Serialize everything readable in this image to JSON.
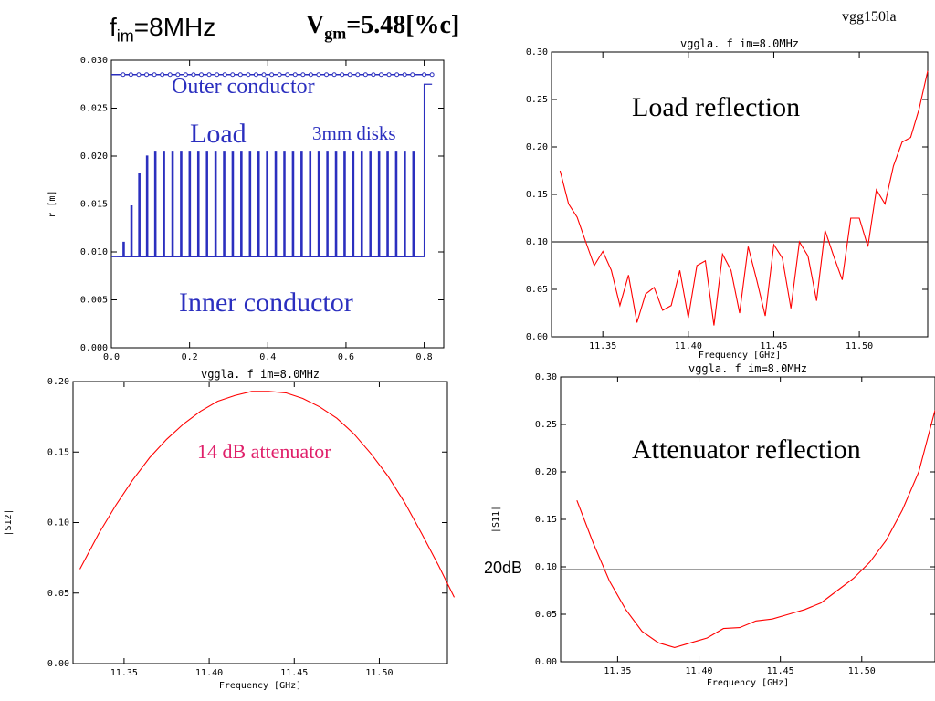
{
  "header": {
    "fim_f": "f",
    "fim_sub": "im",
    "fim_rest": "=8MHz",
    "vgm_v": "V",
    "vgm_sub": "gm",
    "vgm_rest": "=5.48[%c]",
    "corner_label": "vgg150la",
    "db_label": "20dB"
  },
  "chart_data": [
    {
      "id": "geometry",
      "type": "line",
      "title": "",
      "xlabel": "",
      "ylabel": "r [m]",
      "xlim": [
        0.0,
        0.85
      ],
      "ylim": [
        0.0,
        0.03
      ],
      "xticks": [
        0.0,
        0.2,
        0.4,
        0.6,
        0.8
      ],
      "xtick_labels": [
        "0.0",
        "0.2",
        "0.4",
        "0.6",
        "0.8"
      ],
      "yticks": [
        0.0,
        0.005,
        0.01,
        0.015,
        0.02,
        0.025,
        0.03
      ],
      "ytick_labels": [
        "0.000",
        "0.005",
        "0.010",
        "0.015",
        "0.020",
        "0.025",
        "0.030"
      ],
      "grid": false,
      "annotations": [
        "Outer conductor",
        "Load",
        "3mm disks",
        "Inner conductor"
      ],
      "outer_conductor": {
        "x": [
          0.0,
          0.82
        ],
        "y": 0.0285
      },
      "inner_conductor": {
        "x": [
          0.0,
          0.8
        ],
        "y": 0.0095
      },
      "end_step": {
        "x": 0.8,
        "y": 0.0275,
        "x_end": 0.82
      },
      "disks": {
        "x": [
          0.03,
          0.05,
          0.07,
          0.09,
          0.111,
          0.133,
          0.155,
          0.177,
          0.199,
          0.221,
          0.243,
          0.265,
          0.287,
          0.309,
          0.331,
          0.353,
          0.375,
          0.397,
          0.419,
          0.441,
          0.463,
          0.485,
          0.507,
          0.529,
          0.551,
          0.573,
          0.595,
          0.617,
          0.639,
          0.661,
          0.683,
          0.705,
          0.727,
          0.749,
          0.771
        ],
        "r": [
          0.011,
          0.0148,
          0.0182,
          0.02,
          0.0205,
          0.0205,
          0.0205,
          0.0205,
          0.0205,
          0.0205,
          0.0205,
          0.0205,
          0.0205,
          0.0205,
          0.0205,
          0.0205,
          0.0205,
          0.0205,
          0.0205,
          0.0205,
          0.0205,
          0.0205,
          0.0205,
          0.0205,
          0.0205,
          0.0205,
          0.0205,
          0.0205,
          0.0205,
          0.0205,
          0.0205,
          0.0205,
          0.0205,
          0.0205,
          0.0205
        ],
        "width": 0.003
      },
      "outer_markers_x": [
        0.03,
        0.05,
        0.07,
        0.09,
        0.11,
        0.13,
        0.15,
        0.17,
        0.19,
        0.21,
        0.23,
        0.25,
        0.27,
        0.29,
        0.31,
        0.33,
        0.35,
        0.37,
        0.39,
        0.41,
        0.43,
        0.45,
        0.47,
        0.49,
        0.51,
        0.53,
        0.55,
        0.57,
        0.59,
        0.61,
        0.63,
        0.65,
        0.67,
        0.69,
        0.71,
        0.73,
        0.75,
        0.77,
        0.8,
        0.82
      ]
    },
    {
      "id": "load_reflection",
      "type": "line",
      "title": "vggla. f im=8.0MHz",
      "xlabel": "Frequency [GHz]",
      "ylabel": "",
      "xlim": [
        11.32,
        11.54
      ],
      "ylim": [
        0.0,
        0.3
      ],
      "xticks": [
        11.35,
        11.4,
        11.45,
        11.5
      ],
      "xtick_labels": [
        "11.35",
        "11.40",
        "11.45",
        "11.50"
      ],
      "yticks": [
        0.0,
        0.05,
        0.1,
        0.15,
        0.2,
        0.25,
        0.3
      ],
      "ytick_labels": [
        "0.00",
        "0.05",
        "0.10",
        "0.15",
        "0.20",
        "0.25",
        "0.30"
      ],
      "grid": false,
      "annotations": [
        "Load reflection"
      ],
      "hline": 0.1,
      "series": [
        {
          "color": "#ff0000",
          "x": [
            11.325,
            11.33,
            11.335,
            11.34,
            11.345,
            11.35,
            11.355,
            11.36,
            11.365,
            11.37,
            11.375,
            11.38,
            11.385,
            11.39,
            11.395,
            11.4,
            11.405,
            11.41,
            11.415,
            11.42,
            11.425,
            11.43,
            11.435,
            11.44,
            11.445,
            11.45,
            11.455,
            11.46,
            11.465,
            11.47,
            11.475,
            11.48,
            11.485,
            11.49,
            11.495,
            11.5,
            11.505,
            11.51,
            11.515,
            11.52,
            11.525,
            11.53,
            11.535,
            11.54
          ],
          "y": [
            0.175,
            0.14,
            0.126,
            0.1,
            0.075,
            0.09,
            0.07,
            0.033,
            0.065,
            0.015,
            0.045,
            0.052,
            0.028,
            0.033,
            0.07,
            0.02,
            0.075,
            0.08,
            0.012,
            0.087,
            0.07,
            0.025,
            0.095,
            0.06,
            0.022,
            0.097,
            0.083,
            0.03,
            0.1,
            0.085,
            0.038,
            0.112,
            0.085,
            0.06,
            0.125,
            0.125,
            0.095,
            0.155,
            0.14,
            0.18,
            0.205,
            0.21,
            0.24,
            0.28
          ]
        }
      ]
    },
    {
      "id": "transmission",
      "type": "line",
      "title": "vggla. f im=8.0MHz",
      "xlabel": "Frequency [GHz]",
      "ylabel": "|S12|",
      "xlim": [
        11.32,
        11.54
      ],
      "ylim": [
        0.0,
        0.2
      ],
      "xticks": [
        11.35,
        11.4,
        11.45,
        11.5
      ],
      "xtick_labels": [
        "11.35",
        "11.40",
        "11.45",
        "11.50"
      ],
      "yticks": [
        0.0,
        0.05,
        0.1,
        0.15,
        0.2
      ],
      "ytick_labels": [
        "0.00",
        "0.05",
        "0.10",
        "0.15",
        "0.20"
      ],
      "grid": false,
      "annotations": [
        "14 dB attenuator"
      ],
      "series": [
        {
          "color": "#ff0000",
          "x": [
            11.324,
            11.335,
            11.345,
            11.355,
            11.365,
            11.375,
            11.385,
            11.395,
            11.405,
            11.415,
            11.425,
            11.435,
            11.445,
            11.455,
            11.465,
            11.475,
            11.485,
            11.495,
            11.505,
            11.515,
            11.525,
            11.535,
            11.544
          ],
          "y": [
            0.067,
            0.092,
            0.112,
            0.13,
            0.146,
            0.159,
            0.17,
            0.179,
            0.186,
            0.19,
            0.193,
            0.193,
            0.192,
            0.188,
            0.182,
            0.174,
            0.163,
            0.149,
            0.133,
            0.114,
            0.092,
            0.069,
            0.047
          ]
        }
      ]
    },
    {
      "id": "attenuator_reflection",
      "type": "line",
      "title": "vggla. f im=8.0MHz",
      "xlabel": "Frequency [GHz]",
      "ylabel": "|S11|",
      "xlim": [
        11.315,
        11.545
      ],
      "ylim": [
        0.0,
        0.3
      ],
      "xticks": [
        11.35,
        11.4,
        11.45,
        11.5
      ],
      "xtick_labels": [
        "11.35",
        "11.40",
        "11.45",
        "11.50"
      ],
      "yticks": [
        0.0,
        0.05,
        0.1,
        0.15,
        0.2,
        0.25,
        0.3
      ],
      "ytick_labels": [
        "0.00",
        "0.05",
        "0.10",
        "0.15",
        "0.20",
        "0.25",
        "0.30"
      ],
      "grid": false,
      "annotations": [
        "Attenuator reflection"
      ],
      "hline": 0.097,
      "series": [
        {
          "color": "#ff0000",
          "x": [
            11.325,
            11.335,
            11.345,
            11.355,
            11.365,
            11.375,
            11.385,
            11.395,
            11.405,
            11.415,
            11.425,
            11.435,
            11.445,
            11.455,
            11.465,
            11.475,
            11.485,
            11.495,
            11.505,
            11.515,
            11.525,
            11.535,
            11.545
          ],
          "y": [
            0.17,
            0.125,
            0.085,
            0.055,
            0.032,
            0.02,
            0.015,
            0.02,
            0.025,
            0.035,
            0.036,
            0.043,
            0.045,
            0.05,
            0.055,
            0.062,
            0.075,
            0.088,
            0.105,
            0.128,
            0.16,
            0.2,
            0.265
          ]
        }
      ]
    }
  ]
}
